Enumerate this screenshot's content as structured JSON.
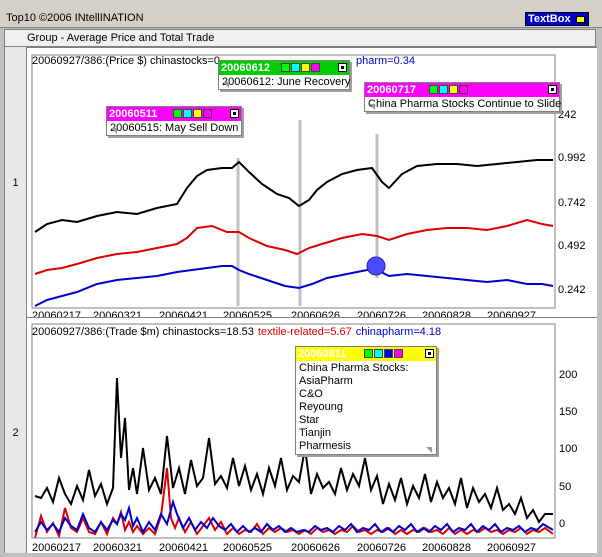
{
  "app": {
    "title": "Top10 ©2006 INtellINATION",
    "textbox_label": "TextBox"
  },
  "group": {
    "title": "Group - Average Price and Total Trade",
    "row1": "1",
    "row2": "2"
  },
  "price": {
    "header_prefix": "20060927/386:(Price $) chinastocks=0.",
    "header_tail": "pharm=0.34",
    "y_ticks": [
      "242",
      "0.992",
      "0.742",
      "0.492",
      "0.242"
    ],
    "x_ticks": [
      "20060217",
      "20060321",
      "20060421",
      "20060525",
      "20060626",
      "20060726",
      "20060828",
      "20060927"
    ]
  },
  "trade": {
    "header_main": "20060927/386:(Trade $m) chinastocks=18.53",
    "header_red": "textile-related=5.67",
    "header_blue": "chinapharm=4.18",
    "y_ticks": [
      "200",
      "150",
      "100",
      "50",
      "0"
    ],
    "x_ticks": [
      "20060217",
      "20060321",
      "20060421",
      "20060525",
      "20060626",
      "20060726",
      "20060828",
      "20060927"
    ]
  },
  "notes": {
    "may": {
      "date": "20060511",
      "text": "20060515: May Sell Down"
    },
    "june": {
      "date": "20060612",
      "text": "20060612: June Recovery"
    },
    "july": {
      "date": "20060717",
      "text": "China Pharma Stocks Continue to Slide"
    },
    "aug": {
      "date": "20060811",
      "lines": [
        "China Pharma Stocks:",
        "AsiaPharm",
        "C&O",
        "Reyoung",
        "Star",
        "Tianjin",
        "Pharmesis"
      ]
    }
  },
  "colors": {
    "black_series": "#000000",
    "red_series": "#dd0000",
    "blue_series": "#0000cc",
    "magenta": "#ff00ff",
    "green": "#00cc00",
    "yellow": "#ffff00"
  }
}
